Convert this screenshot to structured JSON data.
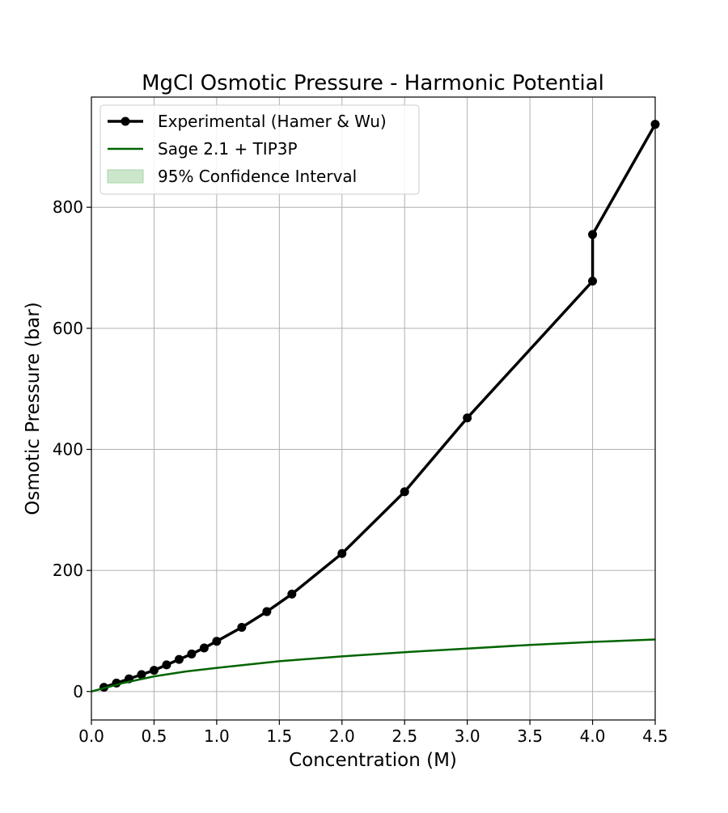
{
  "chart_data": {
    "type": "line",
    "title": "MgCl Osmotic Pressure - Harmonic Potential",
    "xlabel": "Concentration (M)",
    "ylabel": "Osmotic Pressure (bar)",
    "xlim": [
      0,
      4.5
    ],
    "ylim": [
      -47,
      982
    ],
    "grid": true,
    "legend_position": "top-left",
    "x_ticks": [
      "0.0",
      "0.5",
      "1.0",
      "1.5",
      "2.0",
      "2.5",
      "3.0",
      "3.5",
      "4.0",
      "4.5"
    ],
    "y_ticks": [
      "0",
      "200",
      "400",
      "600",
      "800"
    ],
    "series": [
      {
        "name": "Experimental (Hamer & Wu)",
        "color": "#000000",
        "marker": "circle",
        "x": [
          0.1,
          0.2,
          0.3,
          0.4,
          0.5,
          0.6,
          0.7,
          0.8,
          0.9,
          1.0,
          1.2,
          1.4,
          1.6,
          2.0,
          2.5,
          3.0,
          4.0,
          4.0,
          4.5
        ],
        "y": [
          7,
          14,
          21,
          28,
          35,
          44,
          53,
          62,
          72,
          83,
          106,
          132,
          161,
          228,
          330,
          452,
          678,
          755,
          937
        ]
      },
      {
        "name": "Sage 2.1 + TIP3P",
        "color": "#006400",
        "marker": "none",
        "x": [
          0.0,
          0.25,
          0.5,
          0.75,
          1.0,
          1.5,
          2.0,
          2.5,
          3.0,
          3.5,
          4.0,
          4.5
        ],
        "y": [
          0,
          14,
          25,
          33,
          39,
          50,
          58,
          65,
          71,
          77,
          82,
          86
        ]
      }
    ],
    "legend_entries": [
      {
        "label": "Experimental (Hamer & Wu)",
        "kind": "line-marker",
        "color": "#000000"
      },
      {
        "label": "Sage 2.1 + TIP3P",
        "kind": "line",
        "color": "#006400"
      },
      {
        "label": "95% Confidence Interval",
        "kind": "patch",
        "color": "#cce6cc"
      }
    ]
  }
}
